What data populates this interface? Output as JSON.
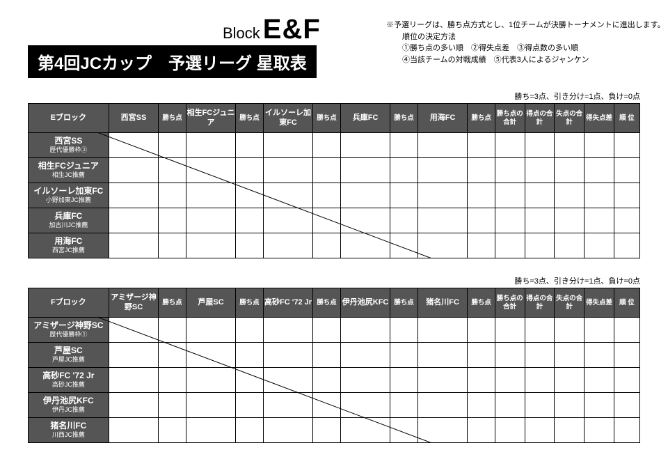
{
  "header": {
    "block_text_prefix": "Block",
    "block_big": "E&F",
    "title": "第4回JCカップ　予選リーグ 星取表"
  },
  "notes": {
    "line1": "※予選リーグは、勝ち点方式とし、1位チームが決勝トーナメントに進出します。",
    "line2": "　順位の決定方法",
    "line3": "　①勝ち点の多い順　②得失点差　③得点数の多い順",
    "line4": "　④当該チームの対戦成績　⑤代表3人によるジャンケン"
  },
  "scoring_note": "勝ち=3点、引き分け=1点、負け=0点",
  "point_label": "勝ち点",
  "summary_headers": {
    "kachiten": "勝ち点の合計",
    "tokuten": "得点の合計",
    "shitten": "失点の合計",
    "tokushitsu": "得失点差",
    "rank": "順 位"
  },
  "blockE": {
    "label": "Eブロック",
    "teams": [
      {
        "name": "西宮SS",
        "sub": "歴代優勝枠②",
        "short": "西宮SS"
      },
      {
        "name": "相生FCジュニア",
        "sub": "相生JC推薦",
        "short": "相生FCジュニア"
      },
      {
        "name": "イルソーレ加東FC",
        "sub": "小野加東JC推薦",
        "short": "イルソーレ加東FC"
      },
      {
        "name": "兵庫FC",
        "sub": "加古川JC推薦",
        "short": "兵庫FC"
      },
      {
        "name": "用海FC",
        "sub": "西宮JC推薦",
        "short": "用海FC"
      }
    ]
  },
  "blockF": {
    "label": "Fブロック",
    "teams": [
      {
        "name": "アミザージ神野SC",
        "sub": "歴代優勝枠①",
        "short": "アミザージ神野SC"
      },
      {
        "name": "芦屋SC",
        "sub": "芦屋JC推薦",
        "short": "芦屋SC"
      },
      {
        "name": "高砂FC '72 Jr",
        "sub": "高砂JC推薦",
        "short": "高砂FC '72 Jr"
      },
      {
        "name": "伊丹池尻KFC",
        "sub": "伊丹JC推薦",
        "short": "伊丹池尻KFC"
      },
      {
        "name": "猪名川FC",
        "sub": "川西JC推薦",
        "short": "猪名川FC"
      }
    ]
  }
}
